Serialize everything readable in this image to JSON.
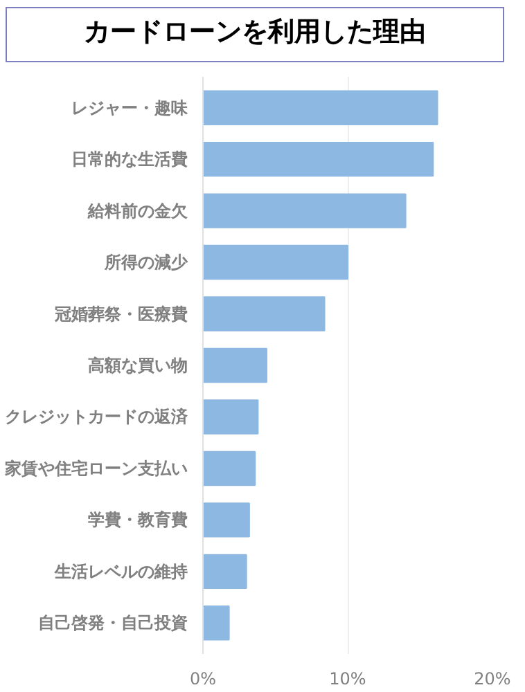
{
  "chart_data": {
    "type": "bar",
    "orientation": "horizontal",
    "title": "カードローンを利用した理由",
    "categories": [
      "レジャー・趣味",
      "日常的な生活費",
      "給料前の金欠",
      "所得の減少",
      "冠婚葬祭・医療費",
      "高額な買い物",
      "クレジットカードの返済",
      "家賃や住宅ローン支払い",
      "学費・教育費",
      "生活レベルの維持",
      "自己啓発・自己投資"
    ],
    "values": [
      16.2,
      15.9,
      14.0,
      10.0,
      8.4,
      4.4,
      3.8,
      3.6,
      3.2,
      3.0,
      1.8
    ],
    "color": "#8db8e2",
    "xlim": [
      0,
      20
    ],
    "xticks": [
      {
        "value": 0,
        "label": "0%"
      },
      {
        "value": 10,
        "label": "10%"
      },
      {
        "value": 20,
        "label": "20%"
      }
    ],
    "grid": "x"
  }
}
